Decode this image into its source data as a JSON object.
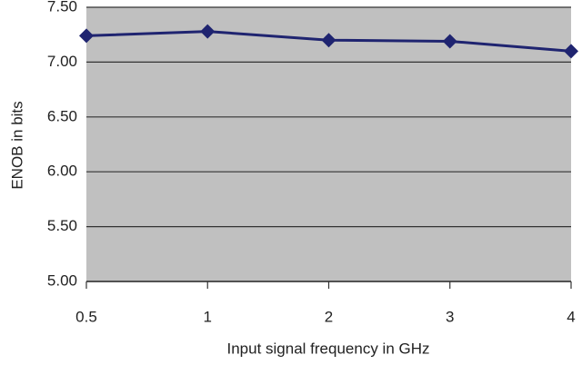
{
  "chart_data": {
    "type": "line",
    "x_label": "Input signal frequency in GHz",
    "y_label": "ENOB in bits",
    "categories": [
      "0.5",
      "1",
      "2",
      "3",
      "4"
    ],
    "series": [
      {
        "name": "ENOB",
        "color": "#1f2470",
        "values": [
          7.24,
          7.28,
          7.2,
          7.19,
          7.1
        ]
      }
    ],
    "ylim": [
      5,
      7.5
    ],
    "yticks": [
      {
        "value": 5,
        "label": "5.00"
      },
      {
        "value": 5.5,
        "label": "5.50"
      },
      {
        "value": 6,
        "label": "6.00"
      },
      {
        "value": 6.5,
        "label": "6.50"
      },
      {
        "value": 7,
        "label": "7.00"
      },
      {
        "value": 7.5,
        "label": "7.50"
      }
    ],
    "grid": true,
    "plot_color": "#c0c0c0"
  }
}
